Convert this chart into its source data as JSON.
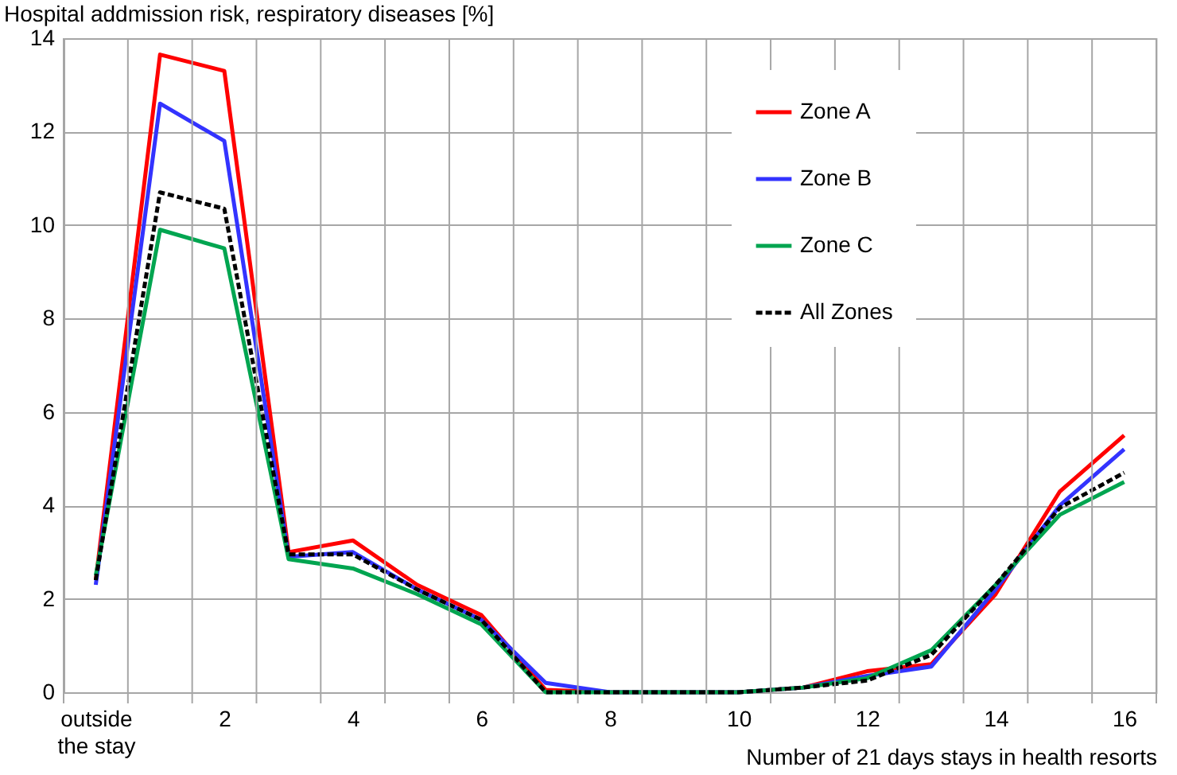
{
  "chart_data": {
    "type": "line",
    "ylabel": "Hospital addmission risk, respiratory diseases [%]",
    "xlabel": "Number of 21 days stays in health resorts",
    "categories": [
      "outside the stay",
      null,
      "2",
      null,
      "4",
      null,
      "6",
      null,
      "8",
      null,
      "10",
      null,
      "12",
      null,
      "14",
      null,
      "16"
    ],
    "series": [
      {
        "name": "Zone  A",
        "color": "#ff0000",
        "line_style": "solid",
        "values": [
          2.4,
          13.65,
          13.3,
          3.0,
          3.25,
          2.3,
          1.65,
          0.05,
          0,
          0,
          0,
          0.1,
          0.45,
          0.6,
          2.1,
          4.3,
          5.5
        ]
      },
      {
        "name": "Zone B",
        "color": "#3333ff",
        "line_style": "solid",
        "values": [
          2.3,
          12.6,
          11.8,
          2.9,
          3.0,
          2.2,
          1.55,
          0.2,
          0,
          0,
          0,
          0.1,
          0.35,
          0.55,
          2.2,
          4.0,
          5.2
        ]
      },
      {
        "name": "Zone C",
        "color": "#00a550",
        "line_style": "solid",
        "values": [
          2.5,
          9.9,
          9.5,
          2.85,
          2.65,
          2.1,
          1.45,
          0,
          0,
          0,
          0,
          0.1,
          0.3,
          0.9,
          2.3,
          3.8,
          4.5
        ]
      },
      {
        "name": "All Zones",
        "color": "#000000",
        "line_style": "dashed",
        "values": [
          2.4,
          10.7,
          10.35,
          2.95,
          2.95,
          2.2,
          1.55,
          0,
          0,
          0,
          0,
          0.1,
          0.25,
          0.8,
          2.3,
          3.95,
          4.7
        ]
      }
    ],
    "ylim": [
      0,
      14
    ],
    "yticks": [
      0,
      2,
      4,
      6,
      8,
      10,
      12,
      14
    ],
    "grid": true,
    "legend": "top right",
    "marker": "none"
  }
}
